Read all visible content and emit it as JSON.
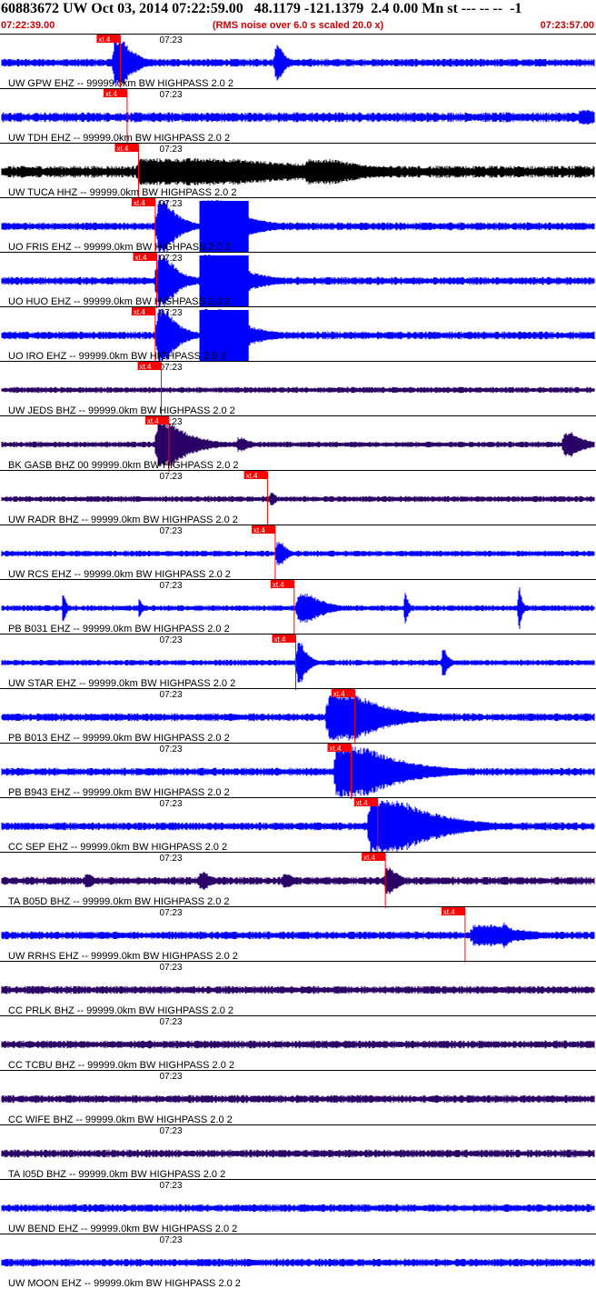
{
  "header": {
    "title": "60883672 UW Oct 03, 2014 07:22:59.00   48.1179 -121.1379  2.4 0.00 Mn st --- -- --  -1",
    "start_time": "07:22:39.00",
    "note": "(RMS noise over 6.0 s scaled 20.0 x)",
    "end_time": "07:23:57.00"
  },
  "chart_data": {
    "type": "line",
    "x_range_seconds": [
      0,
      78
    ],
    "tick_label": "07:23",
    "tick_second": 21,
    "pick_label": "xt.4",
    "colors": {
      "trace": "#0000ff",
      "trace_dark": "#2a0066",
      "trace_black": "#000000",
      "pick": "#ff0000",
      "grid": "#000000"
    },
    "traces": [
      {
        "label": "UW GPW EHZ -- 99999.0km BW  HIGHPASS  2.0  2",
        "pick_s": 15.6,
        "color": "trace",
        "amp": 4,
        "events": [
          [
            14.8,
            3,
            26
          ],
          [
            36.0,
            1.5,
            20
          ]
        ],
        "saturated": false
      },
      {
        "label": "UW TDH EHZ -- 99999.0km BW  HIGHPASS  2.0  2",
        "pick_s": 16.5,
        "color": "trace",
        "amp": 5,
        "events": [
          [
            76,
            4,
            8
          ]
        ],
        "saturated": false
      },
      {
        "label": "UW TUCA HHZ -- 99999.0km BW  HIGHPASS  2.0  2",
        "pick_s": 18.0,
        "color": "trace_black",
        "amp": 6,
        "events": [
          [
            18,
            30,
            15
          ],
          [
            40,
            10,
            14
          ]
        ],
        "saturated": false
      },
      {
        "label": "UO FRIS EHZ -- 99999.0km BW  HIGHPASS  2.0  2",
        "pick_s": 20.2,
        "color": "trace",
        "amp": 4,
        "events": [
          [
            20.5,
            3,
            30
          ],
          [
            26.5,
            6,
            30
          ]
        ],
        "saturated": true
      },
      {
        "label": "UO HUO EHZ -- 99999.0km BW  HIGHPASS  2.0  2",
        "pick_s": 20.4,
        "color": "trace",
        "amp": 4,
        "events": [
          [
            20.5,
            3,
            30
          ],
          [
            26.5,
            6,
            30
          ]
        ],
        "saturated": true
      },
      {
        "label": "UO IRO EHZ -- 99999.0km BW  HIGHPASS  2.0  2",
        "pick_s": 20.2,
        "color": "trace",
        "amp": 4,
        "events": [
          [
            20.5,
            3,
            30
          ],
          [
            26.5,
            6,
            30
          ]
        ],
        "saturated": true
      },
      {
        "label": "UW JEDS BHZ -- 99999.0km BW  HIGHPASS  2.0  2",
        "pick_s": 21.0,
        "color": "trace_dark",
        "amp": 3,
        "events": [],
        "saturated": false
      },
      {
        "label": "BK GASB BHZ 00 99999.0km BW  HIGHPASS  2.0  2",
        "pick_s": 22.0,
        "color": "trace_dark",
        "amp": 3,
        "events": [
          [
            20.5,
            5,
            25
          ],
          [
            31,
            2,
            8
          ],
          [
            74,
            3,
            14
          ]
        ],
        "saturated": false
      },
      {
        "label": "UW RADR BHZ -- 99999.0km BW  HIGHPASS  2.0  2",
        "pick_s": 35.0,
        "color": "trace_dark",
        "amp": 3,
        "events": [
          [
            35.3,
            1,
            8
          ]
        ],
        "saturated": false
      },
      {
        "label": "UW RCS EHZ -- 99999.0km BW  HIGHPASS  2.0  2",
        "pick_s": 36.0,
        "color": "trace",
        "amp": 3,
        "events": [
          [
            36.2,
            1.5,
            14
          ]
        ],
        "saturated": false
      },
      {
        "label": "PB B031 EHZ -- 99999.0km BW  HIGHPASS  2.0  2",
        "pick_s": 38.5,
        "color": "trace",
        "amp": 3,
        "events": [
          [
            39,
            4,
            16
          ],
          [
            8,
            0.6,
            14
          ],
          [
            18,
            0.6,
            10
          ],
          [
            53,
            0.6,
            18
          ],
          [
            68,
            0.6,
            24
          ]
        ],
        "saturated": false
      },
      {
        "label": "UW STAR EHZ -- 99999.0km BW  HIGHPASS  2.0  2",
        "pick_s": 38.7,
        "color": "trace",
        "amp": 3,
        "events": [
          [
            38.9,
            1.5,
            24
          ],
          [
            58,
            1,
            14
          ]
        ],
        "saturated": false
      },
      {
        "label": "PB B013 EHZ -- 99999.0km BW  HIGHPASS  2.0  2",
        "pick_s": 46.5,
        "color": "trace",
        "amp": 4,
        "events": [
          [
            43,
            9,
            26
          ]
        ],
        "saturated": false
      },
      {
        "label": "PB B943 EHZ -- 99999.0km BW  HIGHPASS  2.0  2",
        "pick_s": 46.0,
        "color": "trace",
        "amp": 4,
        "events": [
          [
            44,
            10,
            28
          ]
        ],
        "saturated": false
      },
      {
        "label": "CC SEP EHZ -- 99999.0km BW  HIGHPASS  2.0  2",
        "pick_s": 49.5,
        "color": "trace",
        "amp": 4,
        "events": [
          [
            48.5,
            10,
            30
          ]
        ],
        "saturated": false
      },
      {
        "label": "TA B05D BHZ -- 99999.0km BW  HIGHPASS  2.0  2",
        "pick_s": 50.5,
        "color": "trace_dark",
        "amp": 4,
        "events": [
          [
            50.5,
            2,
            16
          ],
          [
            26,
            2,
            10
          ],
          [
            11,
            1.5,
            8
          ],
          [
            37,
            2,
            8
          ]
        ],
        "saturated": false
      },
      {
        "label": "UW RRHS EHZ -- 99999.0km BW  HIGHPASS  2.0  2",
        "pick_s": 61.0,
        "color": "trace",
        "amp": 4,
        "events": [
          [
            62,
            8,
            12
          ],
          [
            66,
            1,
            14
          ]
        ],
        "saturated": false
      },
      {
        "label": "CC PRLK BHZ -- 99999.0km BW  HIGHPASS  2.0  2",
        "pick_s": null,
        "color": "trace_dark",
        "amp": 4,
        "events": [],
        "saturated": false
      },
      {
        "label": "CC TCBU BHZ -- 99999.0km BW  HIGHPASS  2.0  2",
        "pick_s": null,
        "color": "trace_dark",
        "amp": 4,
        "events": [],
        "saturated": false
      },
      {
        "label": "CC WIFE BHZ -- 99999.0km BW  HIGHPASS  2.0  2",
        "pick_s": null,
        "color": "trace_dark",
        "amp": 4,
        "events": [],
        "saturated": false
      },
      {
        "label": "TA I05D BHZ -- 99999.0km BW  HIGHPASS  2.0  2",
        "pick_s": null,
        "color": "trace_dark",
        "amp": 4,
        "events": [],
        "saturated": false
      },
      {
        "label": "UW BEND EHZ -- 99999.0km BW  HIGHPASS  2.0  2",
        "pick_s": null,
        "color": "trace",
        "amp": 4,
        "events": [],
        "saturated": false
      },
      {
        "label": "UW MOON EHZ -- 99999.0km BW  HIGHPASS  2.0  2",
        "pick_s": null,
        "color": "trace",
        "amp": 4,
        "events": [],
        "saturated": false
      }
    ]
  }
}
